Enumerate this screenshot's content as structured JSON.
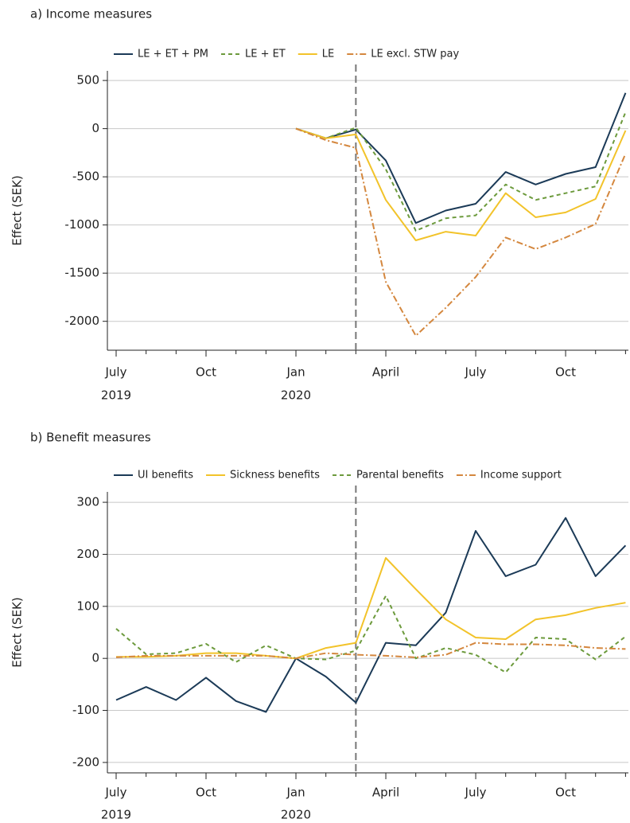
{
  "chart_data": [
    {
      "type": "line",
      "title": "a) Income measures",
      "y_label": "Effect (SEK)",
      "categories": [
        "July",
        null,
        null,
        "Oct",
        null,
        null,
        "Jan",
        null,
        null,
        "April",
        null,
        null,
        "July",
        null,
        null,
        "Oct",
        null,
        null
      ],
      "years": [
        "2019",
        null,
        null,
        null,
        null,
        null,
        "2020",
        null,
        null,
        null,
        null,
        null,
        null,
        null,
        null,
        null,
        null,
        null
      ],
      "ylim": [
        -2300,
        600
      ],
      "yticks": [
        500,
        0,
        -500,
        -1000,
        -1500,
        -2000
      ],
      "grid": true,
      "series": [
        {
          "name": "LE + ET + PM",
          "color": "#1b3a57",
          "dash": "solid",
          "values": [
            null,
            null,
            null,
            null,
            null,
            null,
            0,
            -100,
            -10,
            -330,
            -980,
            -850,
            -780,
            -450,
            -580,
            -470,
            -400,
            370
          ]
        },
        {
          "name": "LE + ET",
          "color": "#6c9a3c",
          "dash": "dash",
          "values": [
            null,
            null,
            null,
            null,
            null,
            null,
            0,
            -100,
            10,
            -420,
            -1060,
            -930,
            -900,
            -580,
            -740,
            -670,
            -600,
            170
          ]
        },
        {
          "name": "LE",
          "color": "#f2c32a",
          "dash": "solid",
          "values": [
            null,
            null,
            null,
            null,
            null,
            null,
            0,
            -100,
            -60,
            -740,
            -1160,
            -1070,
            -1110,
            -670,
            -920,
            -870,
            -730,
            -20
          ]
        },
        {
          "name": "LE excl. STW pay",
          "color": "#d4873e",
          "dash": "dashdot",
          "values": [
            null,
            null,
            null,
            null,
            null,
            null,
            0,
            -120,
            -200,
            -1590,
            -2150,
            -1860,
            -1540,
            -1130,
            -1250,
            -1130,
            -990,
            -260
          ]
        }
      ]
    },
    {
      "type": "line",
      "title": "b) Benefit measures",
      "y_label": "Effect (SEK)",
      "categories": [
        "July",
        null,
        null,
        "Oct",
        null,
        null,
        "Jan",
        null,
        null,
        "April",
        null,
        null,
        "July",
        null,
        null,
        "Oct",
        null,
        null
      ],
      "years": [
        "2019",
        null,
        null,
        null,
        null,
        null,
        "2020",
        null,
        null,
        null,
        null,
        null,
        null,
        null,
        null,
        null,
        null,
        null
      ],
      "ylim": [
        -220,
        320
      ],
      "yticks": [
        300,
        200,
        100,
        0,
        -100,
        -200
      ],
      "grid": true,
      "series": [
        {
          "name": "UI benefits",
          "color": "#1b3a57",
          "dash": "solid",
          "values": [
            -80,
            -55,
            -80,
            -37,
            -82,
            -103,
            0,
            -35,
            -85,
            30,
            25,
            88,
            245,
            158,
            180,
            270,
            158,
            217
          ]
        },
        {
          "name": "Sickness benefits",
          "color": "#f2c32a",
          "dash": "solid",
          "values": [
            3,
            3,
            5,
            10,
            10,
            5,
            0,
            20,
            30,
            193,
            133,
            75,
            40,
            37,
            75,
            83,
            97,
            107
          ]
        },
        {
          "name": "Parental benefits",
          "color": "#6c9a3c",
          "dash": "dash",
          "values": [
            57,
            8,
            10,
            28,
            -7,
            25,
            0,
            -2,
            15,
            120,
            0,
            20,
            7,
            -27,
            40,
            37,
            -2,
            42
          ]
        },
        {
          "name": "Income support",
          "color": "#d4873e",
          "dash": "dashdot",
          "values": [
            2,
            5,
            5,
            5,
            5,
            5,
            0,
            10,
            7,
            5,
            2,
            7,
            30,
            27,
            27,
            25,
            20,
            18
          ]
        }
      ]
    }
  ]
}
